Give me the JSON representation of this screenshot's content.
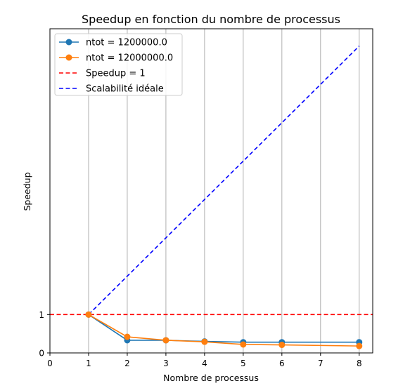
{
  "chart_data": {
    "type": "line",
    "title": "Speedup en fonction du nombre de processus",
    "xlabel": "Nombre de processus",
    "ylabel": "Speedup",
    "xlim": [
      0,
      8.35
    ],
    "ylim": [
      0,
      8.45
    ],
    "xticks": [
      0,
      1,
      2,
      3,
      4,
      5,
      6,
      7,
      8
    ],
    "yticks": [
      0,
      1
    ],
    "grid": "vertical",
    "legend_position": "top-left",
    "series": [
      {
        "name": "ntot = 1200000.0",
        "color": "#1f77b4",
        "style": "solid-marker",
        "x": [
          1,
          2,
          3,
          4,
          5,
          6,
          8
        ],
        "y": [
          1.0,
          0.33,
          0.33,
          0.3,
          0.28,
          0.28,
          0.28
        ]
      },
      {
        "name": "ntot = 12000000.0",
        "color": "#ff7f0e",
        "style": "solid-marker",
        "x": [
          1,
          2,
          3,
          4,
          5,
          6,
          8
        ],
        "y": [
          1.0,
          0.42,
          0.33,
          0.29,
          0.22,
          0.21,
          0.18
        ]
      },
      {
        "name": "Speedup = 1",
        "color": "#ff0000",
        "style": "dashed",
        "x": [
          0,
          8.35
        ],
        "y": [
          1,
          1
        ]
      },
      {
        "name": "Scalabilité idéale",
        "color": "#0000ff",
        "style": "dashed",
        "x": [
          1,
          8
        ],
        "y": [
          1,
          8
        ]
      }
    ]
  }
}
